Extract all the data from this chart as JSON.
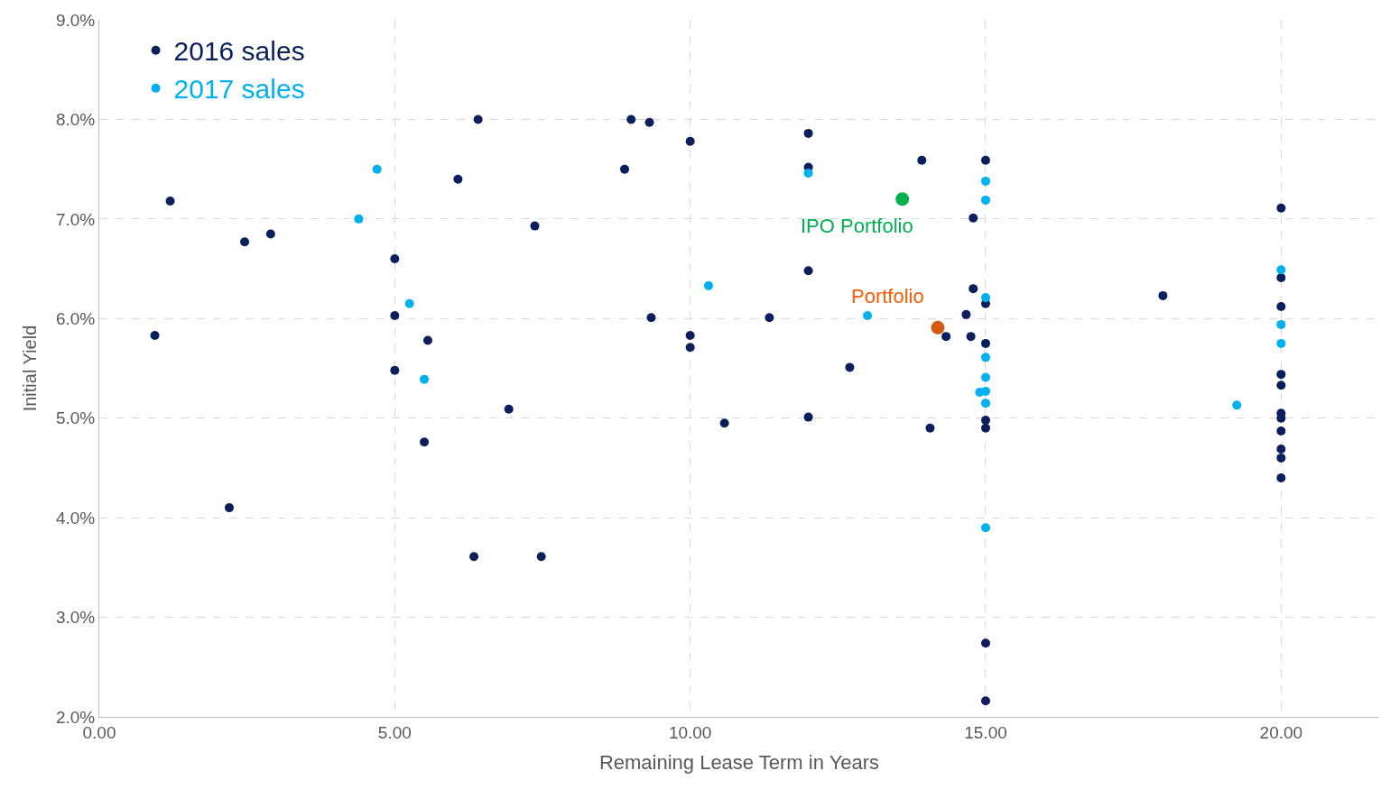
{
  "chart_data": {
    "type": "scatter",
    "xlabel": "Remaining Lease Term in Years",
    "ylabel": "Initial Yield",
    "xlim": [
      0,
      21.66
    ],
    "ylim": [
      2.0,
      9.0
    ],
    "xticks": [
      {
        "value": 0,
        "label": "0.00"
      },
      {
        "value": 5,
        "label": "5.00"
      },
      {
        "value": 10,
        "label": "10.00"
      },
      {
        "value": 15,
        "label": "15.00"
      },
      {
        "value": 20,
        "label": "20.00"
      }
    ],
    "yticks": [
      {
        "value": 2,
        "label": "2.0%"
      },
      {
        "value": 3,
        "label": "3.0%"
      },
      {
        "value": 4,
        "label": "4.0%"
      },
      {
        "value": 5,
        "label": "5.0%"
      },
      {
        "value": 6,
        "label": "6.0%"
      },
      {
        "value": 7,
        "label": "7.0%"
      },
      {
        "value": 8,
        "label": "8.0%"
      },
      {
        "value": 9,
        "label": "9.0%"
      }
    ],
    "grid": true,
    "legend": "top left",
    "marker": "circle",
    "series": [
      {
        "name": "2016 sales",
        "color": "#0a1f5c",
        "x": [
          0.94,
          1.2,
          2.46,
          2.9,
          2.2,
          5.0,
          5.0,
          5.0,
          5.56,
          5.5,
          6.41,
          6.07,
          6.34,
          7.48,
          7.37,
          6.93,
          9.0,
          9.31,
          8.89,
          10.0,
          9.34,
          10.0,
          10.0,
          10.58,
          12.0,
          12.0,
          12.0,
          11.34,
          12.0,
          12.7,
          13.92,
          14.79,
          14.79,
          14.67,
          14.33,
          14.75,
          14.06,
          15.0,
          15.0,
          15.0,
          15.0,
          15.0,
          15.0,
          15.0,
          18.0,
          20.0,
          20.0,
          20.0,
          20.0,
          20.0,
          20.0,
          20.0,
          20.0,
          20.0,
          20.0,
          20.0
        ],
        "values": [
          5.83,
          7.18,
          6.77,
          6.85,
          4.1,
          6.6,
          6.03,
          5.48,
          5.78,
          4.76,
          8.0,
          7.4,
          3.61,
          3.61,
          6.93,
          5.09,
          8.0,
          7.97,
          7.5,
          7.78,
          6.01,
          5.83,
          5.71,
          4.95,
          7.86,
          7.52,
          6.48,
          6.01,
          5.01,
          5.51,
          7.59,
          7.01,
          6.3,
          6.04,
          5.82,
          5.82,
          4.9,
          7.59,
          6.15,
          5.75,
          4.98,
          4.9,
          2.74,
          2.16,
          6.23,
          7.11,
          6.41,
          6.12,
          5.44,
          5.33,
          5.05,
          5.0,
          4.87,
          4.69,
          4.6,
          4.4
        ]
      },
      {
        "name": "2017 sales",
        "color": "#00b0f0",
        "x": [
          4.7,
          4.39,
          5.25,
          5.5,
          10.31,
          12.0,
          13.0,
          15.0,
          15.0,
          15.0,
          15.0,
          15.0,
          15.0,
          14.9,
          15.0,
          15.0,
          19.25,
          20.0,
          20.0,
          20.0
        ],
        "values": [
          7.5,
          7.0,
          6.15,
          5.39,
          6.33,
          7.46,
          6.03,
          7.38,
          7.19,
          6.21,
          5.61,
          5.41,
          5.27,
          5.26,
          5.15,
          3.9,
          5.13,
          6.49,
          5.94,
          5.75
        ]
      },
      {
        "color": "#00b050",
        "x": [
          13.59
        ],
        "values": [
          7.2
        ]
      },
      {
        "color": "#d05a10",
        "x": [
          14.19
        ],
        "values": [
          5.91
        ]
      }
    ],
    "annotations": [
      {
        "text": "IPO Portfolio",
        "x": 13.59,
        "y": 7.2
      },
      {
        "text": "Portfolio",
        "x": 14.19,
        "y": 5.91
      }
    ]
  }
}
